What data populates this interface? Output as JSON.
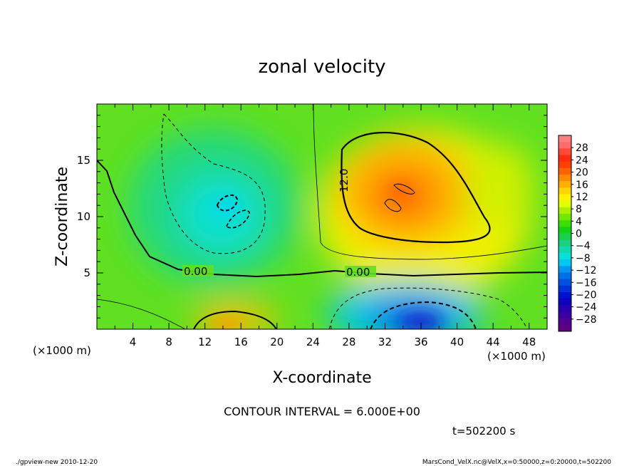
{
  "chart_data": {
    "type": "heatmap",
    "title": "zonal velocity",
    "xlabel": "X-coordinate",
    "ylabel": "Z-coordinate",
    "x_unit_note": "(×1000 m)",
    "y_unit_note": "(×1000 m)",
    "xlim": [
      0,
      50
    ],
    "ylim": [
      0,
      20
    ],
    "x_ticks": [
      "4",
      "8",
      "12",
      "16",
      "20",
      "24",
      "28",
      "32",
      "36",
      "40",
      "44",
      "48"
    ],
    "y_ticks": [
      "5",
      "10",
      "15"
    ],
    "colorbar": {
      "labels": [
        "28",
        "24",
        "20",
        "16",
        "12",
        "8",
        "4",
        "0",
        "−4",
        "−8",
        "−12",
        "−16",
        "−20",
        "−24",
        "−28"
      ],
      "levels": [
        30,
        28,
        26,
        24,
        22,
        20,
        18,
        16,
        14,
        12,
        10,
        8,
        6,
        4,
        2,
        0,
        -2,
        -4,
        -6,
        -8,
        -10,
        -12,
        -14,
        -16,
        -18,
        -20,
        -22,
        -24,
        -26,
        -28,
        -30
      ],
      "colors": [
        "#ff8080",
        "#ff6a6a",
        "#ff4a3a",
        "#ff2a10",
        "#ff4000",
        "#ff6200",
        "#ff8a00",
        "#ffb000",
        "#ffd500",
        "#fff200",
        "#e0ff00",
        "#aaf000",
        "#70e800",
        "#3fdc00",
        "#14d218",
        "#1ad04c",
        "#18d080",
        "#12d8b0",
        "#08e0dc",
        "#00c8f0",
        "#0098f0",
        "#0070e8",
        "#0050e0",
        "#0030d8",
        "#0010d0",
        "#1000c0",
        "#2800b0",
        "#3c00a0",
        "#500090",
        "#600080"
      ]
    },
    "contour_labels": [
      "0.00",
      "0.00",
      "12.0"
    ],
    "contour_interval_text": "CONTOUR INTERVAL = 6.000E+00",
    "time_text": "t=502200 s",
    "features": [
      {
        "description": "positive max",
        "x": 33,
        "z": 11.5,
        "value": 20
      },
      {
        "description": "negative min (aloft)",
        "x": 14.5,
        "z": 10.5,
        "value": -12
      },
      {
        "description": "negative min (surface)",
        "x": 34,
        "z": 1.0,
        "value": -20
      },
      {
        "description": "positive max (surface)",
        "x": 15,
        "z": 1.0,
        "value": 14
      }
    ]
  },
  "footer": {
    "left": "./gpview-new  2010-12-20",
    "right": "MarsCond_VelX.nc@VelX,x=0:50000,z=0:20000,t=502200"
  }
}
